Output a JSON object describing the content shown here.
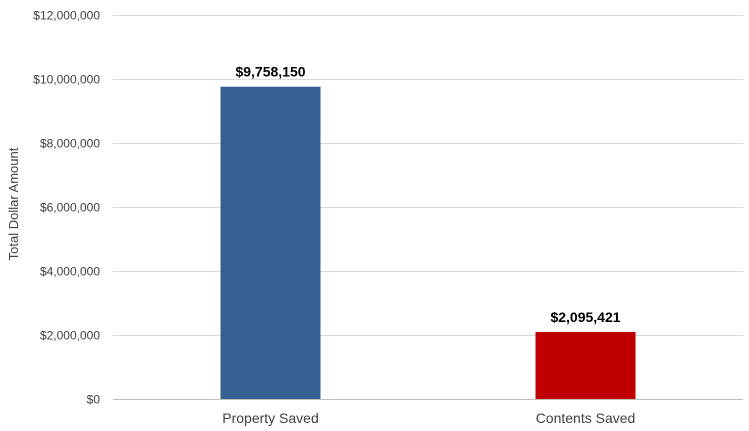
{
  "chart_data": {
    "type": "bar",
    "categories": [
      "Property Saved",
      "Contents Saved"
    ],
    "values": [
      9758150,
      2095421
    ],
    "data_labels": [
      "$9,758,150",
      "$2,095,421"
    ],
    "colors": [
      "#376092",
      "#c00000"
    ],
    "title": "",
    "xlabel": "",
    "ylabel": "Total Dollar Amount",
    "ylim": [
      0,
      12000000
    ],
    "y_ticks": [
      0,
      2000000,
      4000000,
      6000000,
      8000000,
      10000000,
      12000000
    ],
    "y_tick_labels": [
      "$0",
      "$2,000,000",
      "$4,000,000",
      "$6,000,000",
      "$8,000,000",
      "$10,000,000",
      "$12,000,000"
    ],
    "grid": true,
    "gridline_color": "#d9d9d9",
    "legend": "none"
  }
}
